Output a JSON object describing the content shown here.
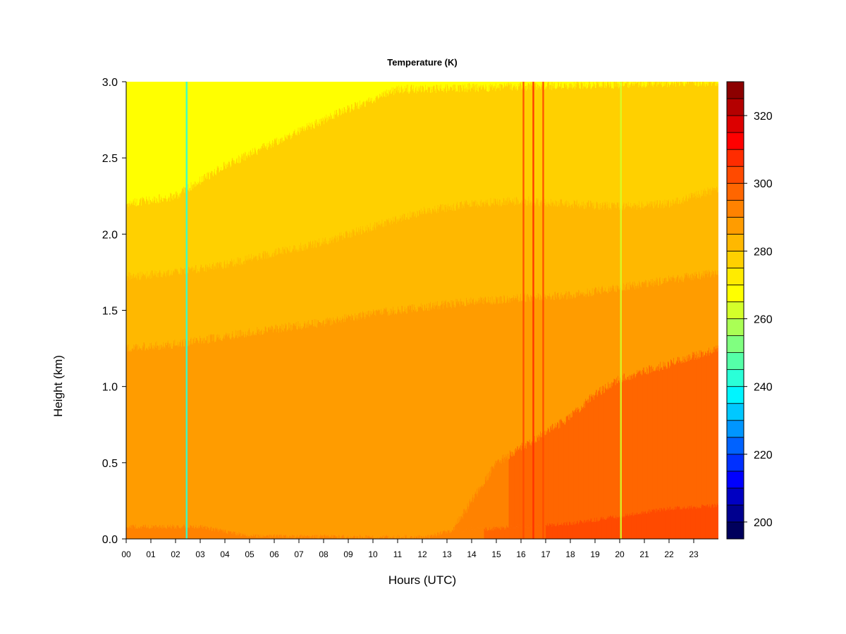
{
  "chart_data": {
    "type": "heatmap",
    "title": "Temperature (K)",
    "xlabel": "Hours (UTC)",
    "ylabel": "Height (km)",
    "xlim": [
      0,
      24
    ],
    "ylim": [
      0.0,
      3.0
    ],
    "x_ticks": [
      "00",
      "01",
      "02",
      "03",
      "04",
      "05",
      "06",
      "07",
      "08",
      "09",
      "10",
      "11",
      "12",
      "13",
      "14",
      "15",
      "16",
      "17",
      "18",
      "19",
      "20",
      "21",
      "22",
      "23"
    ],
    "y_ticks": [
      "0.0",
      "0.5",
      "1.0",
      "1.5",
      "2.0",
      "2.5",
      "3.0"
    ],
    "colorbar": {
      "min": 195,
      "max": 330,
      "step": 5,
      "ticks": [
        "200",
        "220",
        "240",
        "260",
        "280",
        "300",
        "320"
      ],
      "colors": [
        "#00005c",
        "#00008f",
        "#0000c2",
        "#0000ff",
        "#0030ff",
        "#0062ff",
        "#0096ff",
        "#00c8ff",
        "#00f5ff",
        "#2affd8",
        "#55ffa8",
        "#80ff80",
        "#aaff55",
        "#d4ff2a",
        "#ffff00",
        "#ffeb00",
        "#ffd000",
        "#ffb800",
        "#ff9c00",
        "#ff8200",
        "#ff6600",
        "#ff4a00",
        "#ff2c00",
        "#ff0000",
        "#dc0000",
        "#b40000",
        "#8c0000"
      ]
    },
    "layers_temperature_K": {
      "surface_night": 290,
      "surface_afternoon": 302,
      "boundary_layer_night": 290,
      "boundary_layer_afternoon": 296,
      "low_free_troposphere": 287,
      "mid_level": 282,
      "upper_level": 277,
      "top_cold_morning": 267
    },
    "layer_boundaries_km": [
      {
        "name": "surface",
        "x": [
          0,
          3,
          5,
          12,
          13,
          15,
          18,
          20,
          22,
          24
        ],
        "y": [
          0.08,
          0.08,
          0.02,
          0.0,
          0.05,
          0.07,
          0.1,
          0.15,
          0.2,
          0.22
        ]
      },
      {
        "name": "boundary_layer_top",
        "x": [
          0,
          13,
          14,
          15,
          16,
          17,
          18,
          19,
          20,
          21,
          22,
          23,
          24
        ],
        "y": [
          0.0,
          0.0,
          0.25,
          0.5,
          0.6,
          0.7,
          0.8,
          0.95,
          1.05,
          1.1,
          1.15,
          1.2,
          1.25
        ]
      },
      {
        "name": "mixed_layer_top",
        "x": [
          0,
          2,
          4,
          6,
          8,
          10,
          12,
          13.5,
          16,
          18,
          20,
          22,
          24
        ],
        "y": [
          1.25,
          1.28,
          1.33,
          1.38,
          1.42,
          1.48,
          1.52,
          1.55,
          1.58,
          1.6,
          1.65,
          1.7,
          1.75
        ]
      },
      {
        "name": "mid_level_top",
        "x": [
          0,
          2,
          4,
          6,
          8,
          10,
          12,
          14,
          16,
          18,
          20,
          22,
          24
        ],
        "y": [
          1.72,
          1.75,
          1.8,
          1.88,
          1.95,
          2.05,
          2.15,
          2.2,
          2.22,
          2.2,
          2.18,
          2.2,
          2.3
        ]
      },
      {
        "name": "upper_level_top",
        "x": [
          0,
          2,
          4,
          6,
          8,
          10,
          12,
          14,
          16,
          18,
          20,
          22,
          24
        ],
        "y": [
          2.2,
          2.25,
          2.45,
          2.6,
          2.75,
          2.9,
          3.0,
          3.0,
          3.0,
          3.0,
          3.0,
          3.0,
          3.0
        ]
      }
    ],
    "anomalies": [
      {
        "hour": 2.45,
        "value_K": 240
      },
      {
        "hour": 16.1,
        "value_K": 302
      },
      {
        "hour": 16.5,
        "value_K": 305
      },
      {
        "hour": 16.9,
        "value_K": 302
      },
      {
        "hour": 20.05,
        "value_K": 262
      }
    ]
  }
}
